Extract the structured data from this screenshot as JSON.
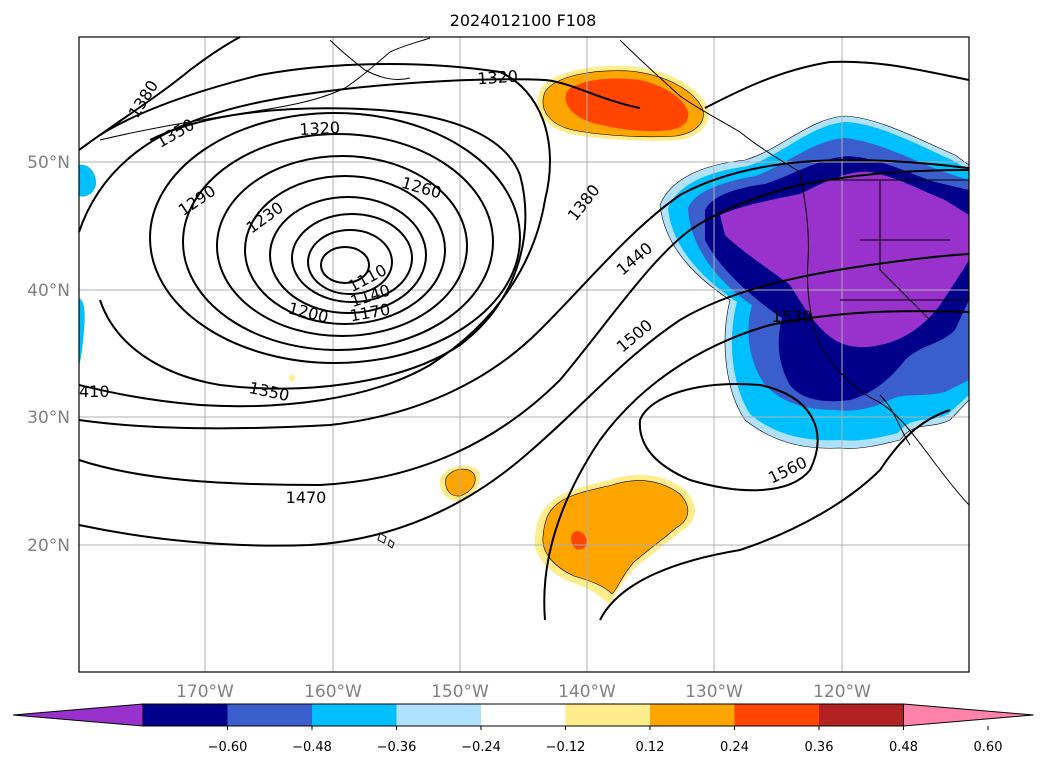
{
  "map": {
    "title": "2024012100 F108",
    "lat_labels": [
      "50°N",
      "40°N",
      "30°N",
      "20°N"
    ],
    "lon_labels": [
      "170°W",
      "160°W",
      "150°W",
      "140°W",
      "130°W",
      "120°W"
    ],
    "contour_labels": [
      "1380",
      "1350",
      "1320",
      "1320",
      "1290",
      "1260",
      "1230",
      "1110",
      "1140",
      "1170",
      "1200",
      "1380",
      "1440",
      "1500",
      "1530",
      "1350",
      "410",
      "1470",
      "1560"
    ]
  },
  "colorbar": {
    "ticks": [
      "−0.60",
      "−0.48",
      "−0.36",
      "−0.24",
      "−0.12",
      "0.12",
      "0.24",
      "0.36",
      "0.48",
      "0.60"
    ],
    "colors": [
      "#9932cc",
      "#00008b",
      "#3a5fcd",
      "#00bfff",
      "#b0e2ff",
      "#ffffff",
      "#ffec8b",
      "#ffa500",
      "#ff4500",
      "#b22222",
      "#ff82ab"
    ]
  },
  "colors": {
    "strong_neg": "#9932cc",
    "neg": "#00008b",
    "mid_neg": "#3a5fcd",
    "light_neg": "#00bfff",
    "very_light_neg": "#b0e2ff",
    "light_pos": "#ffec8b",
    "pos": "#ffa500",
    "strong_pos": "#ff4500",
    "contour": "#000000",
    "grid": "#b0b0b0",
    "label": "#808080"
  }
}
